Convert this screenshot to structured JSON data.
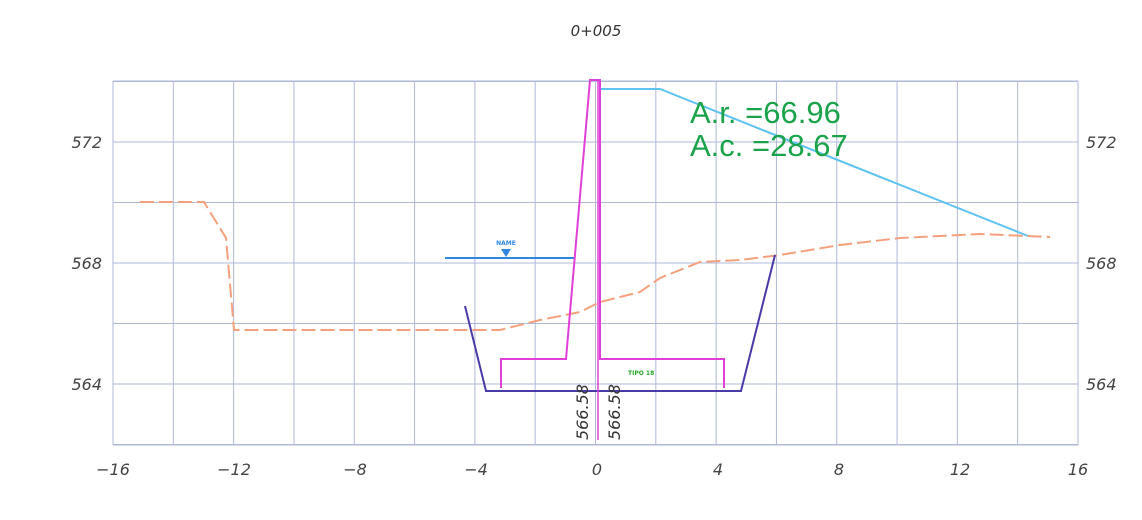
{
  "section": {
    "station": "0+005",
    "area_road": "A.r. =66.96",
    "area_cut": "A.c. =28.67",
    "elevation_left": "566.58",
    "elevation_right": "566.58",
    "water_label": "NAME",
    "structure_label": "TIPO 18"
  },
  "axes": {
    "x_ticks": [
      "−16",
      "−12",
      "−8",
      "−4",
      "0",
      "4",
      "8",
      "12",
      "16"
    ],
    "y_ticks": [
      "572",
      "568",
      "564"
    ]
  },
  "colors": {
    "grid": "#aeb9d8",
    "ground": "#f4a07c",
    "design": "#5fc3f0",
    "wall": "#e040d8",
    "excavation": "#4a3aa8",
    "water": "#2f86e0",
    "area_text": "#1aa34a"
  }
}
